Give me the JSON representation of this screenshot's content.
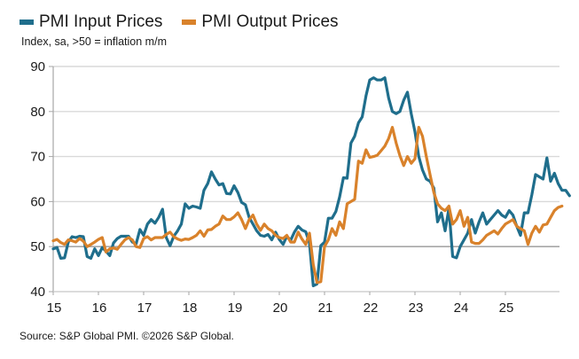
{
  "chart_data": {
    "type": "line",
    "title": "",
    "subtitle": "Index, sa, >50 = inflation m/m",
    "xlabel": "",
    "ylabel": "",
    "ylim": [
      40,
      90
    ],
    "yticks": [
      40,
      50,
      60,
      70,
      80,
      90
    ],
    "xticks": [
      "15",
      "16",
      "17",
      "18",
      "19",
      "20",
      "21",
      "22",
      "23",
      "24",
      "25"
    ],
    "x_start": "2015-01",
    "frequency": "monthly",
    "grid": true,
    "legend_position": "top-left",
    "series": [
      {
        "name": "PMI Input Prices",
        "color": "#1f6e8c",
        "values": [
          49.5,
          49.8,
          47.4,
          47.5,
          51.0,
          52.2,
          52.0,
          52.3,
          52.2,
          47.8,
          47.4,
          49.5,
          48.0,
          49.8,
          49.0,
          48.0,
          50.8,
          51.8,
          52.3,
          52.3,
          52.3,
          51.0,
          50.6,
          53.8,
          52.5,
          55.0,
          56.0,
          55.2,
          56.5,
          58.3,
          52.0,
          50.2,
          52.3,
          53.5,
          55.0,
          59.5,
          58.5,
          59.0,
          58.8,
          58.5,
          62.5,
          64.0,
          66.6,
          65.0,
          63.7,
          64.0,
          61.8,
          61.7,
          63.5,
          62.0,
          59.8,
          59.3,
          56.5,
          55.0,
          53.5,
          52.5,
          52.3,
          52.7,
          51.5,
          53.2,
          51.6,
          50.5,
          52.3,
          51.4,
          53.2,
          54.5,
          53.7,
          53.3,
          50.8,
          41.3,
          41.7,
          50.2,
          51.0,
          56.3,
          56.3,
          57.8,
          61.0,
          65.3,
          65.2,
          73.0,
          74.5,
          77.5,
          78.8,
          83.5,
          87.0,
          87.5,
          87.0,
          87.0,
          87.5,
          83.0,
          80.0,
          79.5,
          80.0,
          82.5,
          84.3,
          79.5,
          75.5,
          70.0,
          67.0,
          65.0,
          64.5,
          63.0,
          55.5,
          57.5,
          53.5,
          58.5,
          47.8,
          47.5,
          50.0,
          51.5,
          53.0,
          56.0,
          53.0,
          55.5,
          57.5,
          55.0,
          56.0,
          57.0,
          58.0,
          57.0,
          56.5,
          58.0,
          57.0,
          54.5,
          52.5,
          57.5,
          57.5,
          61.5,
          66.0,
          65.5,
          65.0,
          69.7,
          64.5,
          66.3,
          64.0,
          62.5,
          62.5,
          61.3
        ],
        "_note": ""
      },
      {
        "name": "PMI Output Prices",
        "color": "#d9822b",
        "values": [
          51.3,
          51.6,
          50.9,
          50.5,
          51.5,
          51.3,
          51.0,
          51.8,
          51.2,
          50.0,
          50.5,
          51.0,
          51.6,
          52.0,
          48.8,
          49.5,
          49.7,
          49.4,
          50.5,
          51.5,
          52.0,
          51.5,
          50.0,
          49.8,
          51.8,
          52.2,
          51.5,
          52.0,
          52.0,
          52.0,
          52.7,
          53.2,
          52.2,
          51.7,
          51.4,
          51.7,
          51.6,
          52.0,
          52.5,
          53.5,
          52.3,
          53.7,
          53.8,
          54.5,
          55.0,
          56.8,
          56.0,
          56.0,
          56.6,
          57.5,
          56.0,
          54.0,
          56.0,
          57.0,
          55.0,
          53.6,
          55.0,
          54.0,
          53.5,
          52.5,
          52.0,
          51.8,
          52.5,
          51.0,
          51.0,
          53.2,
          51.7,
          50.5,
          53.0,
          46.0,
          42.0,
          42.2,
          50.0,
          51.5,
          54.0,
          52.5,
          55.5,
          54.0,
          59.5,
          60.0,
          60.5,
          69.0,
          68.5,
          71.5,
          69.8,
          70.0,
          70.3,
          71.3,
          72.3,
          74.0,
          76.5,
          73.0,
          70.2,
          68.0,
          70.0,
          68.5,
          69.5,
          76.5,
          74.5,
          70.0,
          66.0,
          62.0,
          59.5,
          58.5,
          58.0,
          59.0,
          55.0,
          56.0,
          58.0,
          54.5,
          56.5,
          51.0,
          50.7,
          50.7,
          51.5,
          52.5,
          53.0,
          53.5,
          52.8,
          54.0,
          55.0,
          55.5,
          56.0,
          54.5,
          54.0,
          53.5,
          50.5,
          53.0,
          54.5,
          53.2,
          54.8,
          55.0,
          56.5,
          58.0,
          58.7,
          59.0
        ]
      }
    ]
  },
  "legend": {
    "items": [
      {
        "label": "PMI Input Prices",
        "color": "#1f6e8c"
      },
      {
        "label": "PMI Output Prices",
        "color": "#d9822b"
      }
    ]
  },
  "subtitle": "Index, sa, >50 = inflation m/m",
  "source": "Source: S&P Global PMI. ©2026 S&P Global."
}
